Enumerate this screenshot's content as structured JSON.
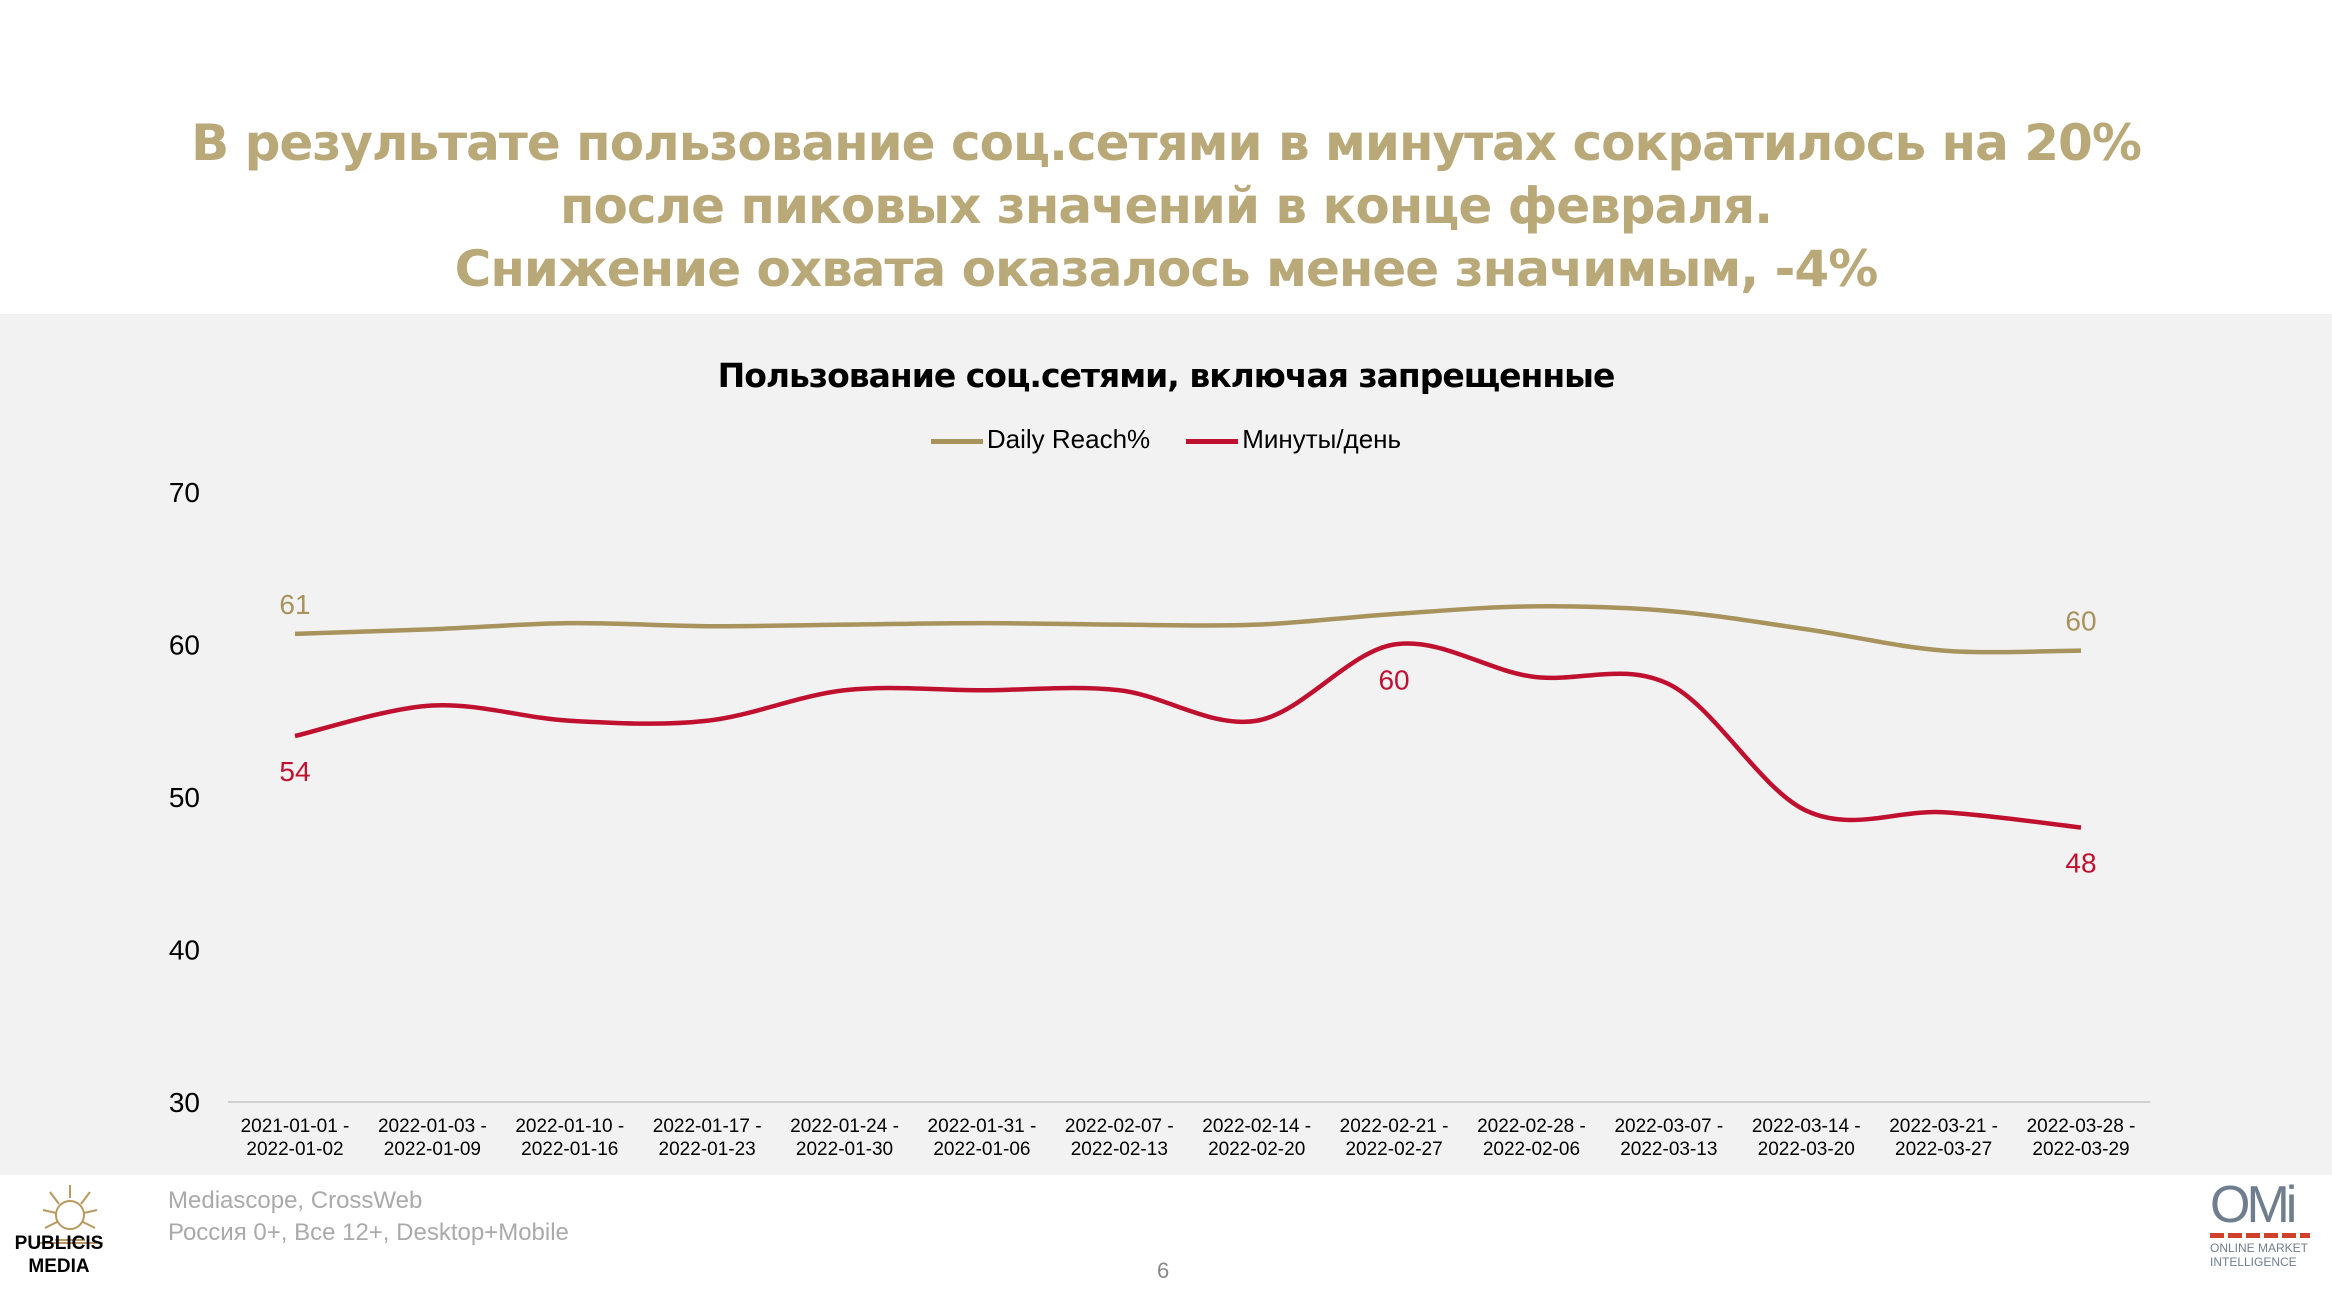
{
  "header": {
    "title_lines": [
      "В результате пользование соц.сетями в минутах сократилось на 20%",
      "после пиковых значений в конце февраля.",
      "Снижение охвата оказалось менее значимым, -4%"
    ]
  },
  "chart_data": {
    "type": "line",
    "title": "Пользование соц.сетями, включая запрещенные",
    "ylim": [
      30,
      70
    ],
    "yticks": [
      "30",
      "40",
      "50",
      "60",
      "70"
    ],
    "categories": [
      [
        "2021-01-01 -",
        "2022-01-02"
      ],
      [
        "2022-01-03 -",
        "2022-01-09"
      ],
      [
        "2022-01-10 -",
        "2022-01-16"
      ],
      [
        "2022-01-17 -",
        "2022-01-23"
      ],
      [
        "2022-01-24 -",
        "2022-01-30"
      ],
      [
        "2022-01-31 -",
        "2022-01-06"
      ],
      [
        "2022-02-07 -",
        "2022-02-13"
      ],
      [
        "2022-02-14 -",
        "2022-02-20"
      ],
      [
        "2022-02-21 -",
        "2022-02-27"
      ],
      [
        "2022-02-28 -",
        "2022-02-06"
      ],
      [
        "2022-03-07 -",
        "2022-03-13"
      ],
      [
        "2022-03-14 -",
        "2022-03-20"
      ],
      [
        "2022-03-21 -",
        "2022-03-27"
      ],
      [
        "2022-03-28 -",
        "2022-03-29"
      ]
    ],
    "legend_position": "top",
    "series": [
      {
        "name": "Daily Reach%",
        "color": "#a8935d",
        "values": [
          60.7,
          61.0,
          61.4,
          61.2,
          61.3,
          61.4,
          61.3,
          61.3,
          62.0,
          62.5,
          62.2,
          61.0,
          59.6,
          59.6
        ],
        "labels": [
          {
            "index": 0,
            "text": "61",
            "pos": "above"
          },
          {
            "index": 13,
            "text": "60",
            "pos": "above"
          }
        ]
      },
      {
        "name": "Минуты/день",
        "color": "#c0102f",
        "values": [
          54,
          56,
          55,
          55,
          57,
          57,
          57,
          55,
          60,
          57.9,
          57.4,
          49.1,
          49,
          48
        ],
        "labels": [
          {
            "index": 0,
            "text": "54",
            "pos": "below"
          },
          {
            "index": 8,
            "text": "60",
            "pos": "below"
          },
          {
            "index": 13,
            "text": "48",
            "pos": "below"
          }
        ]
      }
    ]
  },
  "footer": {
    "source_line1": "Mediascope, CrossWeb",
    "source_line2": "Россия 0+, Все 12+, Desktop+Mobile",
    "page_number": "6",
    "left_logo": "PUBLICIS MEDIA",
    "right_logo": "OMI ONLINE MARKET INTELLIGENCE"
  }
}
